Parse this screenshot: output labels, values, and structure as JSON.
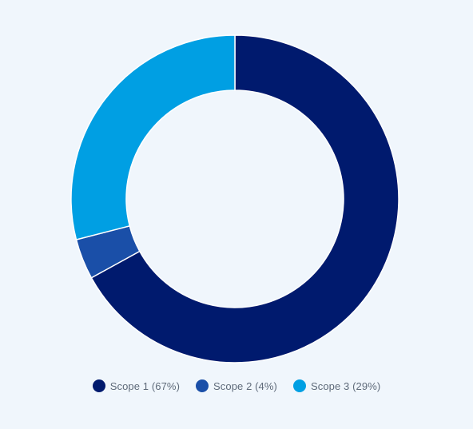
{
  "chart_data": {
    "type": "pie",
    "variant": "donut",
    "title": "",
    "categories": [
      "Scope 1",
      "Scope 2",
      "Scope 3"
    ],
    "values": [
      67,
      4,
      29
    ],
    "unit": "%",
    "colors": [
      "#001a6e",
      "#1a4fa8",
      "#009fe3"
    ],
    "legend": {
      "placement": "bottom",
      "items": [
        "Scope 1 (67%)",
        "Scope 2 (4%)",
        "Scope 3 (29%)"
      ]
    }
  }
}
